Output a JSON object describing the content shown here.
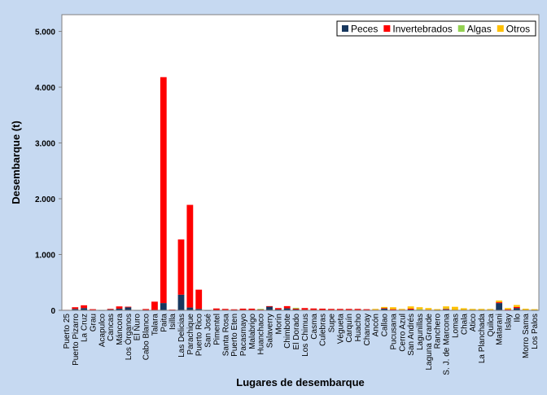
{
  "chart_data": {
    "type": "bar",
    "stacked": true,
    "xlabel": "Lugares de desembarque",
    "ylabel": "Desembarque (t)",
    "ylim": [
      0,
      5300
    ],
    "yticks": [
      0,
      1000,
      2000,
      3000,
      4000,
      5000
    ],
    "ytick_labels": [
      "0",
      "1.000",
      "2.000",
      "3.000",
      "4.000",
      "5.000"
    ],
    "grid": false,
    "legend_position": "top-right",
    "colors": {
      "background": "#c6d9f1",
      "plot_area": "#ffffff",
      "Peces": "#17375e",
      "Invertebrados": "#ff0000",
      "Algas": "#92d050",
      "Otros": "#ffc000"
    },
    "categories": [
      "Puerto 25",
      "Puerto Pizarro",
      "La Cruz",
      "Grau",
      "Acapulco",
      "Cancas",
      "Máncora",
      "Los Órganos",
      "El Ñuro",
      "Cabo Blanco",
      "Talara",
      "Paita",
      "Isilla",
      "Las Delicias",
      "Parachique",
      "Puerto Rico",
      "San José",
      "Pimentel",
      "Santa Rosa",
      "Puerto Eten",
      "Pacasmayo",
      "Malabrigo",
      "Huanchaco",
      "Salaverry",
      "Morín",
      "Chimbote",
      "El Dorado",
      "Los Chimus",
      "Casma",
      "Culebras",
      "Supe",
      "Végueta",
      "Carquín",
      "Huacho",
      "Chancay",
      "Ancón",
      "Callao",
      "Pucusana",
      "Cerro Azul",
      "San Andrés",
      "Lagunillas",
      "Laguna Grande",
      "Ranchero",
      "S. J. de Marcona",
      "Lomas",
      "Chala",
      "Atico",
      "La Planchada",
      "Quilca",
      "Matarani",
      "Islay",
      "Ilo",
      "Morro Sama",
      "Los Palos"
    ],
    "series": [
      {
        "name": "Peces",
        "values": [
          5,
          25,
          40,
          5,
          3,
          20,
          30,
          55,
          3,
          3,
          5,
          130,
          3,
          280,
          50,
          25,
          2,
          3,
          5,
          3,
          5,
          5,
          10,
          70,
          15,
          35,
          15,
          10,
          8,
          5,
          5,
          5,
          5,
          5,
          5,
          5,
          30,
          10,
          5,
          15,
          5,
          5,
          3,
          20,
          5,
          5,
          3,
          3,
          5,
          130,
          10,
          40,
          5,
          3
        ]
      },
      {
        "name": "Invertebrados",
        "values": [
          3,
          30,
          50,
          15,
          2,
          5,
          40,
          10,
          2,
          20,
          150,
          4050,
          10,
          990,
          1840,
          345,
          3,
          30,
          20,
          15,
          25,
          25,
          10,
          5,
          25,
          40,
          15,
          30,
          25,
          25,
          20,
          20,
          20,
          20,
          15,
          5,
          10,
          10,
          5,
          15,
          5,
          5,
          3,
          5,
          3,
          2,
          2,
          2,
          3,
          15,
          5,
          20,
          3,
          2
        ]
      },
      {
        "name": "Algas",
        "values": [
          0,
          0,
          0,
          0,
          0,
          0,
          0,
          0,
          0,
          0,
          0,
          0,
          0,
          0,
          0,
          0,
          0,
          0,
          0,
          0,
          0,
          0,
          5,
          0,
          0,
          0,
          15,
          0,
          0,
          0,
          0,
          0,
          0,
          0,
          0,
          0,
          0,
          0,
          0,
          0,
          10,
          0,
          0,
          10,
          0,
          0,
          0,
          0,
          0,
          0,
          0,
          0,
          0,
          0
        ]
      },
      {
        "name": "Otros",
        "values": [
          0,
          0,
          0,
          0,
          0,
          0,
          0,
          0,
          0,
          0,
          0,
          0,
          0,
          0,
          0,
          0,
          0,
          0,
          0,
          0,
          0,
          0,
          0,
          0,
          0,
          0,
          0,
          0,
          0,
          0,
          0,
          0,
          0,
          0,
          0,
          15,
          20,
          35,
          15,
          40,
          35,
          30,
          15,
          35,
          55,
          30,
          20,
          20,
          15,
          30,
          25,
          35,
          20,
          15
        ]
      }
    ]
  }
}
